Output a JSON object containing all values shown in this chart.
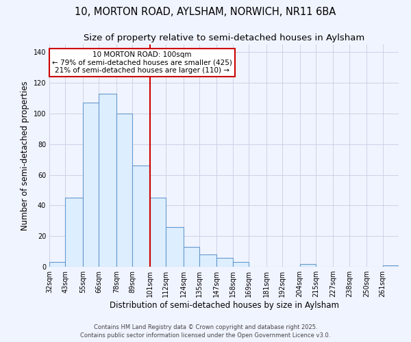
{
  "title1": "10, MORTON ROAD, AYLSHAM, NORWICH, NR11 6BA",
  "title2": "Size of property relative to semi-detached houses in Aylsham",
  "xlabel": "Distribution of semi-detached houses by size in Aylsham",
  "ylabel": "Number of semi-detached properties",
  "bin_labels": [
    "32sqm",
    "43sqm",
    "55sqm",
    "66sqm",
    "78sqm",
    "89sqm",
    "101sqm",
    "112sqm",
    "124sqm",
    "135sqm",
    "147sqm",
    "158sqm",
    "169sqm",
    "181sqm",
    "192sqm",
    "204sqm",
    "215sqm",
    "227sqm",
    "238sqm",
    "250sqm",
    "261sqm"
  ],
  "bin_edges": [
    32,
    43,
    55,
    66,
    78,
    89,
    101,
    112,
    124,
    135,
    147,
    158,
    169,
    181,
    192,
    204,
    215,
    227,
    238,
    250,
    261
  ],
  "values": [
    3,
    45,
    107,
    113,
    100,
    66,
    45,
    26,
    13,
    8,
    6,
    3,
    0,
    0,
    0,
    2,
    0,
    0,
    0,
    0,
    1
  ],
  "bar_facecolor": "#ddeeff",
  "bar_edgecolor": "#6699cc",
  "vline_x": 101,
  "vline_color": "#cc0000",
  "annotation_title": "10 MORTON ROAD: 100sqm",
  "annotation_line1": "← 79% of semi-detached houses are smaller (425)",
  "annotation_line2": "21% of semi-detached houses are larger (110) →",
  "annotation_box_edgecolor": "#cc0000",
  "annotation_box_facecolor": "#ffffff",
  "ylim": [
    0,
    145
  ],
  "yticks": [
    0,
    20,
    40,
    60,
    80,
    100,
    120,
    140
  ],
  "footer1": "Contains HM Land Registry data © Crown copyright and database right 2025.",
  "footer2": "Contains public sector information licensed under the Open Government Licence v3.0.",
  "bg_color": "#f0f4ff",
  "grid_color": "#c8cce0",
  "title_fontsize": 10.5,
  "subtitle_fontsize": 9.5,
  "ylabel_fontsize": 8.5,
  "xlabel_fontsize": 8.5,
  "tick_fontsize": 7,
  "footer_fontsize": 6
}
